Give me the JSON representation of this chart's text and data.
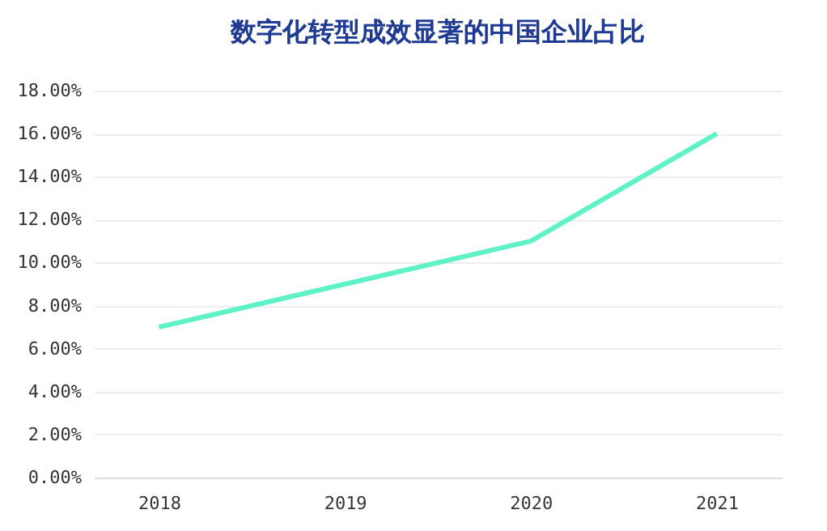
{
  "chart_data": {
    "type": "line",
    "title": "数字化转型成效显著的中国企业占比",
    "categories": [
      "2018",
      "2019",
      "2020",
      "2021"
    ],
    "series": [
      {
        "color": "#5ef2c6",
        "values": [
          7,
          9,
          11,
          16
        ]
      }
    ],
    "ylim": [
      0,
      18
    ],
    "yticks": [
      {
        "value": 0,
        "label": "0.00%"
      },
      {
        "value": 2,
        "label": "2.00%"
      },
      {
        "value": 4,
        "label": "4.00%"
      },
      {
        "value": 6,
        "label": "6.00%"
      },
      {
        "value": 8,
        "label": "8.00%"
      },
      {
        "value": 10,
        "label": "10.00%"
      },
      {
        "value": 12,
        "label": "12.00%"
      },
      {
        "value": 14,
        "label": "14.00%"
      },
      {
        "value": 16,
        "label": "16.00%"
      },
      {
        "value": 18,
        "label": "18.00%"
      }
    ],
    "grid": "y",
    "marker": "none",
    "line_style": "solid"
  }
}
